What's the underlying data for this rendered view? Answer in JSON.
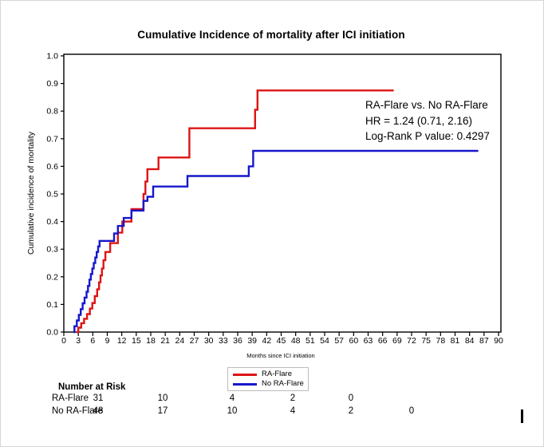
{
  "chart_data": {
    "type": "line",
    "subtype": "step-cumulative-incidence",
    "title": "Cumulative Incidence of mortality after ICI initiation",
    "xlabel": "Months since ICI initiation",
    "ylabel": "Cumulative incidence of mortality",
    "xlim": [
      0,
      90
    ],
    "ylim": [
      0.0,
      1.0
    ],
    "x_ticks": [
      0,
      3,
      6,
      9,
      12,
      15,
      18,
      21,
      24,
      27,
      30,
      33,
      36,
      39,
      42,
      45,
      48,
      51,
      54,
      57,
      60,
      63,
      66,
      69,
      72,
      75,
      78,
      81,
      84,
      87,
      90
    ],
    "y_ticks": [
      "0.0",
      "0.1",
      "0.2",
      "0.3",
      "0.4",
      "0.5",
      "0.6",
      "0.7",
      "0.8",
      "0.9",
      "1.0"
    ],
    "grid": false,
    "legend_position": "below-axis",
    "series": [
      {
        "name": "RA-Flare",
        "color": "#dd1414",
        "start_month": 2.6,
        "end_month": 68.3,
        "steps": [
          [
            3.0,
            0.016
          ],
          [
            3.6,
            0.032
          ],
          [
            4.2,
            0.048
          ],
          [
            4.8,
            0.065
          ],
          [
            5.4,
            0.085
          ],
          [
            5.9,
            0.105
          ],
          [
            6.4,
            0.13
          ],
          [
            6.9,
            0.155
          ],
          [
            7.3,
            0.18
          ],
          [
            7.6,
            0.205
          ],
          [
            7.9,
            0.23
          ],
          [
            8.2,
            0.26
          ],
          [
            8.6,
            0.29
          ],
          [
            9.6,
            0.322
          ],
          [
            11.2,
            0.36
          ],
          [
            12.1,
            0.4
          ],
          [
            14.0,
            0.445
          ],
          [
            16.5,
            0.5
          ],
          [
            16.9,
            0.545
          ],
          [
            17.3,
            0.59
          ],
          [
            19.6,
            0.632
          ],
          [
            26.0,
            0.738
          ],
          [
            39.6,
            0.805
          ],
          [
            40.1,
            0.875
          ]
        ]
      },
      {
        "name": "No RA-Flare",
        "color": "#1717cc",
        "start_month": 2.0,
        "end_month": 85.8,
        "steps": [
          [
            2.2,
            0.021
          ],
          [
            2.7,
            0.042
          ],
          [
            3.1,
            0.062
          ],
          [
            3.5,
            0.083
          ],
          [
            3.9,
            0.104
          ],
          [
            4.3,
            0.125
          ],
          [
            4.7,
            0.146
          ],
          [
            5.0,
            0.167
          ],
          [
            5.3,
            0.19
          ],
          [
            5.6,
            0.21
          ],
          [
            5.9,
            0.23
          ],
          [
            6.2,
            0.25
          ],
          [
            6.5,
            0.27
          ],
          [
            6.8,
            0.29
          ],
          [
            7.1,
            0.31
          ],
          [
            7.4,
            0.33
          ],
          [
            10.4,
            0.357
          ],
          [
            11.2,
            0.384
          ],
          [
            12.4,
            0.413
          ],
          [
            14.0,
            0.44
          ],
          [
            16.5,
            0.475
          ],
          [
            17.3,
            0.49
          ],
          [
            18.5,
            0.527
          ],
          [
            25.6,
            0.565
          ],
          [
            38.3,
            0.6
          ],
          [
            39.2,
            0.656
          ]
        ]
      }
    ]
  },
  "annotation": {
    "lines": [
      "RA-Flare vs. No RA-Flare",
      "HR = 1.24 (0.71, 2.16)",
      "Log-Rank P value: 0.4297"
    ]
  },
  "risk_table": {
    "header": "Number at Risk",
    "rows": [
      {
        "label": "RA-Flare",
        "values": [
          "31",
          "10",
          "4",
          "2",
          "0"
        ]
      },
      {
        "label": "No RA-Flare",
        "values": [
          "48",
          "17",
          "10",
          "4",
          "2",
          "0"
        ]
      }
    ]
  }
}
